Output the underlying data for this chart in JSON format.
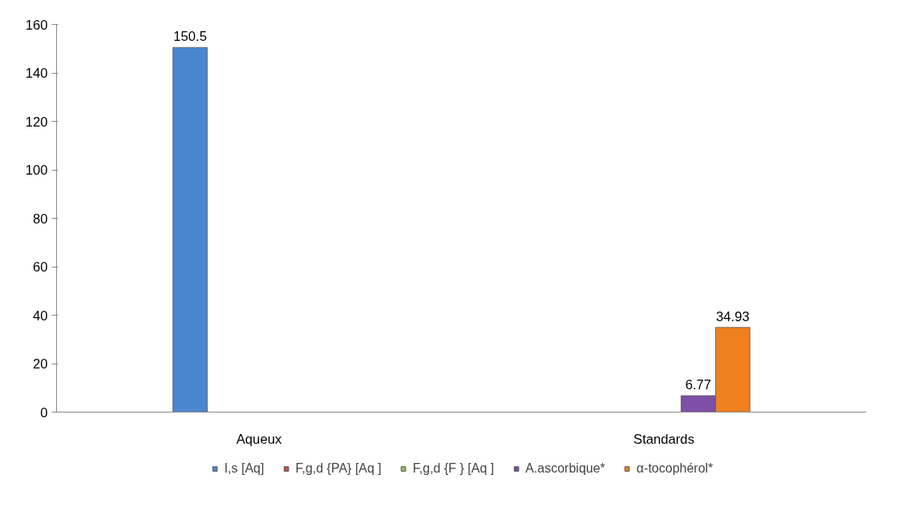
{
  "chart_data": {
    "type": "bar",
    "categories": [
      "Aqueux",
      "Standards"
    ],
    "series": [
      {
        "name": "I,s [Aq]",
        "color": "#4a86cf",
        "values": [
          150.5,
          null
        ]
      },
      {
        "name": "F,g,d {PA} [Aq ]",
        "color": "#c0504d",
        "values": [
          null,
          null
        ]
      },
      {
        "name": "F,g,d {F } [Aq ]",
        "color": "#9bbb59",
        "values": [
          null,
          null
        ]
      },
      {
        "name": "A.ascorbique*",
        "color": "#7f4ea8",
        "values": [
          null,
          6.77
        ]
      },
      {
        "name": "α-tocophérol*",
        "color": "#f07f1e",
        "values": [
          null,
          34.93
        ]
      }
    ],
    "ylim": [
      0,
      160
    ],
    "yticks": [
      0,
      20,
      40,
      60,
      80,
      100,
      120,
      140,
      160
    ],
    "grid": false,
    "legend": "bottom",
    "data_labels": true
  }
}
